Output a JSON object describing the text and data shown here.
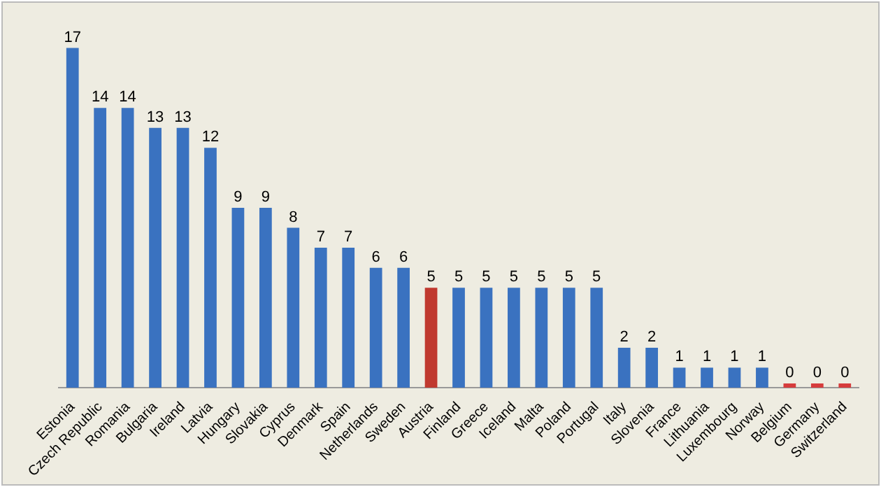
{
  "chart_data": {
    "type": "bar",
    "categories": [
      "Estonia",
      "Czech Republic",
      "Romania",
      "Bulgaria",
      "Ireland",
      "Latvia",
      "Hungary",
      "Slovakia",
      "Cyprus",
      "Denmark",
      "Spain",
      "Netherlands",
      "Sweden",
      "Austria",
      "Finland",
      "Greece",
      "Iceland",
      "Malta",
      "Poland",
      "Portugal",
      "Italy",
      "Slovenia",
      "France",
      "Lithuania",
      "Luxembourg",
      "Norway",
      "Belgium",
      "Germany",
      "Switzerland"
    ],
    "values": [
      17,
      14,
      14,
      13,
      13,
      12,
      9,
      9,
      8,
      7,
      7,
      6,
      6,
      5,
      5,
      5,
      5,
      5,
      5,
      5,
      2,
      2,
      1,
      1,
      1,
      1,
      0,
      0,
      0
    ],
    "colors": [
      "#3a72c0",
      "#3a72c0",
      "#3a72c0",
      "#3a72c0",
      "#3a72c0",
      "#3a72c0",
      "#3a72c0",
      "#3a72c0",
      "#3a72c0",
      "#3a72c0",
      "#3a72c0",
      "#3a72c0",
      "#3a72c0",
      "#c0392f",
      "#3a72c0",
      "#3a72c0",
      "#3a72c0",
      "#3a72c0",
      "#3a72c0",
      "#3a72c0",
      "#3a72c0",
      "#3a72c0",
      "#3a72c0",
      "#3a72c0",
      "#3a72c0",
      "#3a72c0",
      "#d63c3c",
      "#d63c3c",
      "#d63c3c"
    ],
    "data_labels": true,
    "grid": false,
    "legend": false
  }
}
